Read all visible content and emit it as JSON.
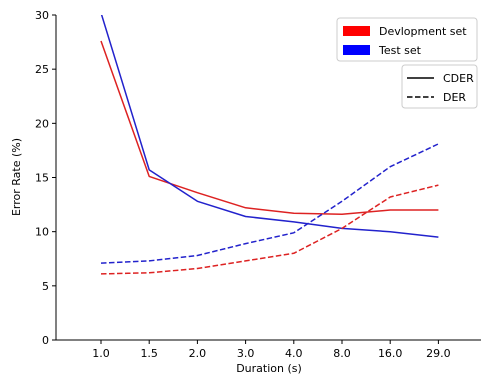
{
  "chart_data": {
    "type": "line",
    "xlabel": "Duration (s)",
    "ylabel": "Error Rate (%)",
    "categories": [
      "1.0",
      "1.5",
      "2.0",
      "3.0",
      "4.0",
      "8.0",
      "16.0",
      "29.0"
    ],
    "ylim": [
      0,
      30
    ],
    "yticks": [
      0,
      5,
      10,
      15,
      20,
      25,
      30
    ],
    "grid": false,
    "color_legend": {
      "placement": "top-right",
      "entries": [
        {
          "label": "Devlopment set",
          "color": "#ff0000"
        },
        {
          "label": "Test set",
          "color": "#0000ff"
        }
      ]
    },
    "style_legend": {
      "placement": "upper-right",
      "entries": [
        {
          "label": "CDER",
          "dash": "solid"
        },
        {
          "label": "DER",
          "dash": "dashed"
        }
      ]
    },
    "series": [
      {
        "set": "Devlopment set",
        "metric": "CDER",
        "color": "#dd2222",
        "dash": "solid",
        "values": [
          27.6,
          15.1,
          13.6,
          12.2,
          11.7,
          11.6,
          12.0,
          12.0
        ]
      },
      {
        "set": "Test set",
        "metric": "CDER",
        "color": "#2222cc",
        "dash": "solid",
        "values": [
          30.2,
          15.7,
          12.8,
          11.4,
          10.9,
          10.3,
          10.0,
          9.5
        ]
      },
      {
        "set": "Devlopment set",
        "metric": "DER",
        "color": "#dd2222",
        "dash": "dashed",
        "values": [
          6.1,
          6.2,
          6.6,
          7.3,
          8.0,
          10.3,
          13.2,
          14.3
        ]
      },
      {
        "set": "Test set",
        "metric": "DER",
        "color": "#2222cc",
        "dash": "dashed",
        "values": [
          7.1,
          7.3,
          7.8,
          8.9,
          9.9,
          12.8,
          16.0,
          18.1
        ]
      }
    ]
  }
}
